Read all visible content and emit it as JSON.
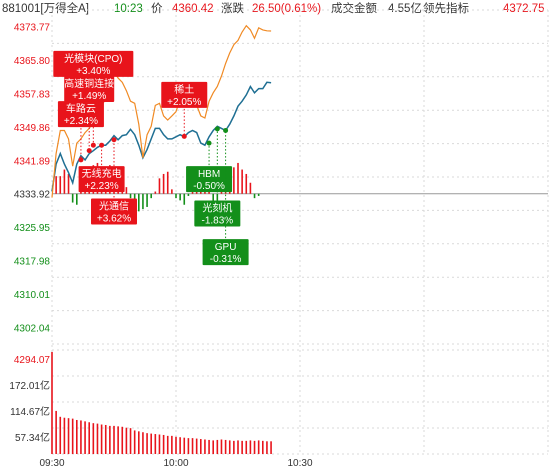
{
  "header": {
    "code_name": "881001[万得全A]",
    "time": "10:23",
    "price_label": "价",
    "price": "4360.42",
    "change_label": "涨跌",
    "change": "26.50(0.61%)",
    "turnover_label": "成交金额",
    "turnover": "4.55亿",
    "leading_label": "领先指标",
    "leading": "4372.75"
  },
  "colors": {
    "up": "#e8141b",
    "down": "#138f1a",
    "price_line": "#1f6f93",
    "leading_line": "#f08a24",
    "grid": "#d9d9d9",
    "base": "#999999"
  },
  "chart_data": {
    "type": "line",
    "y_ticks": [
      "4373.77",
      "4365.80",
      "4357.83",
      "4349.86",
      "4341.89",
      "4333.92",
      "4325.95",
      "4317.98",
      "4310.01",
      "4302.04"
    ],
    "ylim": [
      4298.08,
      4377.75
    ],
    "base_value": 4333.92,
    "volume_ticks": [
      "4294.07",
      "172.01亿",
      "114.67亿",
      "57.34亿"
    ],
    "volume_max": 229.34,
    "x_ticks": [
      "09:30",
      "10:00",
      "10:30"
    ],
    "total_minutes": 120,
    "series": [
      {
        "key": "price",
        "x": [
          0,
          1,
          2,
          3,
          4,
          5,
          6,
          7,
          8,
          9,
          10,
          11,
          12,
          13,
          14,
          15,
          16,
          17,
          18,
          19,
          20,
          21,
          22,
          23,
          24,
          25,
          26,
          27,
          28,
          29,
          30,
          31,
          32,
          33,
          34,
          35,
          36,
          37,
          38,
          39,
          40,
          41,
          42,
          43,
          44,
          45,
          46,
          47,
          48,
          49,
          50,
          51,
          52,
          53
        ],
        "values": [
          4334.5,
          4341.0,
          4343.5,
          4341.0,
          4339.0,
          4336.5,
          4341.0,
          4343.0,
          4342.0,
          4343.5,
          4344.2,
          4345.0,
          4345.5,
          4345.5,
          4346.5,
          4347.8,
          4346.8,
          4347.8,
          4348.0,
          4349.3,
          4348.0,
          4345.5,
          4342.5,
          4344.5,
          4347.0,
          4349.5,
          4349.5,
          4348.0,
          4347.0,
          4347.0,
          4347.5,
          4348.0,
          4347.5,
          4348.5,
          4349.0,
          4348.5,
          4346.0,
          4345.5,
          4347.5,
          4349.0,
          4350.0,
          4349.5,
          4349.0,
          4350.5,
          4352.5,
          4354.8,
          4356.0,
          4357.5,
          4359.5,
          4358.0,
          4359.0,
          4359.0,
          4360.5,
          4360.4
        ]
      },
      {
        "key": "leading",
        "x": [
          0,
          1,
          2,
          3,
          4,
          5,
          6,
          7,
          8,
          9,
          10,
          11,
          12,
          13,
          14,
          15,
          16,
          17,
          18,
          19,
          20,
          21,
          22,
          23,
          24,
          25,
          26,
          27,
          28,
          29,
          30,
          31,
          32,
          33,
          34,
          35,
          36,
          37,
          38,
          39,
          40,
          41,
          42,
          43,
          44,
          45,
          46,
          47,
          48,
          49,
          50,
          51,
          52,
          53
        ],
        "values": [
          4333.0,
          4343.5,
          4349.0,
          4349.0,
          4347.0,
          4340.5,
          4346.0,
          4347.0,
          4348.5,
          4349.5,
          4351.0,
          4353.5,
          4355.0,
          4356.5,
          4362.5,
          4363.0,
          4361.5,
          4360.5,
          4358.5,
          4356.0,
          4355.5,
          4350.5,
          4342.5,
          4348.0,
          4350.0,
          4355.0,
          4355.5,
          4352.5,
          4351.5,
          4352.5,
          4353.5,
          4356.5,
          4355.5,
          4357.0,
          4357.5,
          4355.0,
          4352.5,
          4352.0,
          4356.0,
          4358.0,
          4359.5,
          4362.0,
          4365.0,
          4367.5,
          4369.5,
          4370.5,
          4372.5,
          4374.0,
          4373.0,
          4371.0,
          4373.5,
          4373.0,
          4372.8,
          4372.75
        ]
      }
    ],
    "volume": [
      225,
      95,
      82,
      80,
      79,
      78,
      75,
      74,
      72,
      70,
      68,
      67,
      65,
      64,
      62,
      62,
      61,
      60,
      58,
      57,
      52,
      50,
      48,
      46,
      45,
      44,
      43,
      42,
      40,
      40,
      38,
      37,
      36,
      35,
      35,
      34,
      33,
      32,
      31,
      30,
      31,
      32,
      31,
      30,
      29,
      30,
      29,
      29,
      30,
      29,
      30,
      29,
      28,
      28
    ],
    "flow": {
      "x": [
        1,
        2,
        3,
        4,
        5,
        6,
        7,
        8,
        9,
        10,
        11,
        12,
        13,
        14,
        15,
        16,
        17,
        18,
        19,
        20,
        21,
        22,
        23,
        24,
        25,
        26,
        27,
        28,
        29,
        30,
        31,
        32,
        33,
        34,
        35,
        36,
        37,
        38,
        39,
        40,
        41,
        42,
        43,
        44,
        45,
        46,
        47,
        48,
        49,
        50
      ],
      "values": [
        8,
        8,
        11,
        9,
        -4,
        -5,
        8,
        9,
        12,
        13,
        14,
        10,
        9,
        13,
        11,
        9,
        11,
        3,
        -2,
        -7,
        -8,
        -7,
        -6,
        -2,
        1,
        7,
        9,
        10,
        2,
        -2,
        -3,
        -5,
        -1,
        10,
        8,
        7,
        9,
        6,
        -5,
        -6,
        3,
        6,
        9,
        12,
        14,
        11,
        9,
        5,
        -2,
        -1
      ]
    },
    "annotations": [
      {
        "label": "光模块(CPO)",
        "value": "+3.40%",
        "dir": "up",
        "x": 10,
        "at": 4345.5,
        "tag_y": 4364.9
      },
      {
        "label": "高速铜连接",
        "value": "+1.49%",
        "dir": "up",
        "x": 9,
        "at": 4344.2,
        "tag_y": 4358.9
      },
      {
        "label": "车路云",
        "value": "+2.34%",
        "dir": "up",
        "x": 7,
        "at": 4342.0,
        "tag_y": 4352.9
      },
      {
        "label": "稀土",
        "value": "+2.05%",
        "dir": "up",
        "x": 32,
        "at": 4347.6,
        "tag_y": 4357.5
      },
      {
        "label": "无线充电",
        "value": "+2.23%",
        "dir": "up",
        "x": 12,
        "at": 4345.5,
        "tag_y": 4337.4
      },
      {
        "label": "光通信",
        "value": "+3.62%",
        "dir": "up",
        "x": 15,
        "at": 4346.8,
        "tag_y": 4329.7
      },
      {
        "label": "HBM",
        "value": "-0.50%",
        "dir": "down",
        "x": 38,
        "at": 4346.0,
        "tag_y": 4337.4
      },
      {
        "label": "光刻机",
        "value": "-1.83%",
        "dir": "down",
        "x": 40,
        "at": 4349.4,
        "tag_y": 4329.2
      },
      {
        "label": "GPU",
        "value": "-0.31%",
        "dir": "down",
        "x": 42,
        "at": 4349.0,
        "tag_y": 4320.0
      }
    ]
  }
}
